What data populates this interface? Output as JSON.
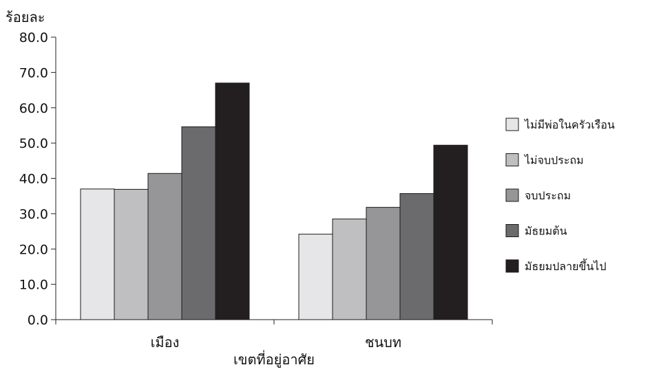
{
  "chart_data": {
    "type": "bar",
    "ylabel": "ร้อยละ",
    "xlabel": "เขตที่อยู่อาศัย",
    "categories": [
      "เมือง",
      "ชนบท"
    ],
    "yticks": [
      "0.0",
      "10.0",
      "20.0",
      "30.0",
      "40.0",
      "50.0",
      "60.0",
      "70.0",
      "80.0"
    ],
    "ylim": [
      0,
      80
    ],
    "grid": false,
    "legend_position": "right",
    "series": [
      {
        "name": "ไม่มีพ่อในครัวเรือน",
        "color": "#e6e6e8",
        "values": [
          37.0,
          24.2
        ]
      },
      {
        "name": "ไม่จบประถม",
        "color": "#bfbfc1",
        "values": [
          36.9,
          28.5
        ]
      },
      {
        "name": "จบประถม",
        "color": "#969698",
        "values": [
          41.4,
          31.8
        ]
      },
      {
        "name": "มัธยมต้น",
        "color": "#6b6b6e",
        "values": [
          54.6,
          35.7
        ]
      },
      {
        "name": "มัธยมปลายขึ้นไป",
        "color": "#231f20",
        "values": [
          67.0,
          49.4
        ]
      }
    ]
  }
}
